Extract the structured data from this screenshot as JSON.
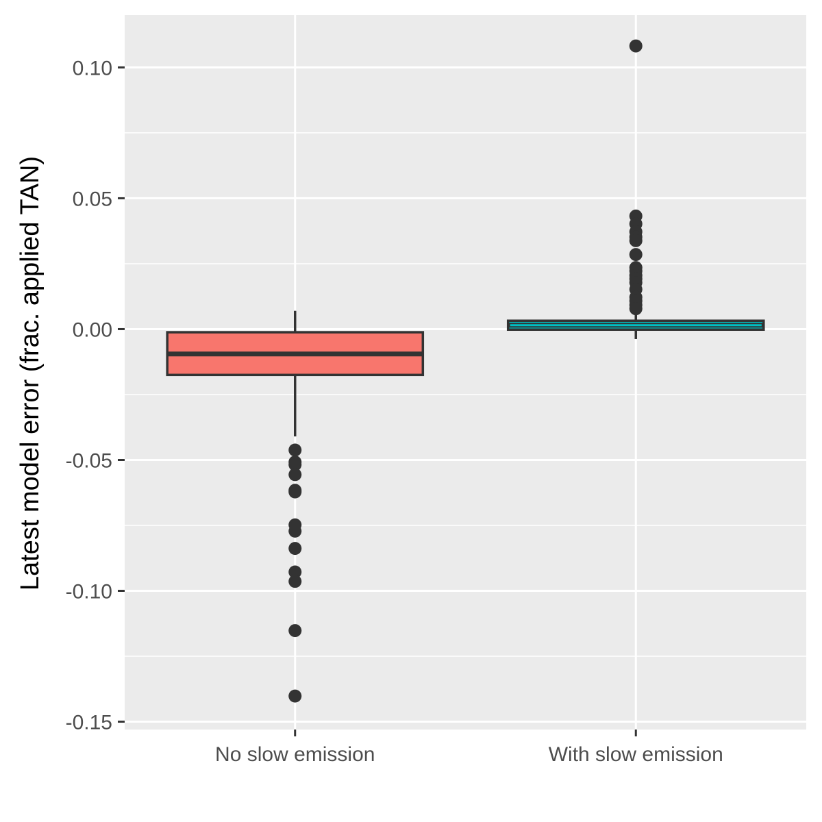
{
  "chart_data": {
    "type": "boxplot",
    "title": "",
    "xlabel": "",
    "ylabel": "Latest model error (frac. applied TAN)",
    "ylim": [
      -0.153,
      0.12
    ],
    "yticks": [
      0.1,
      0.05,
      0.0,
      -0.05,
      -0.1,
      -0.15
    ],
    "ytick_labels": [
      "0.10",
      "0.05",
      "0.00",
      "-0.05",
      "-0.10",
      "-0.15"
    ],
    "grid": true,
    "legend": "none",
    "categories": [
      "No slow emission",
      "With slow emission"
    ],
    "boxes": [
      {
        "category": "No slow emission",
        "fill": "#F8766D",
        "whisker_low": -0.041,
        "q1": -0.0175,
        "median": -0.0095,
        "q3": -0.0012,
        "whisker_high": 0.007,
        "outliers": [
          -0.0462,
          -0.0508,
          -0.0518,
          -0.0556,
          -0.0616,
          -0.0622,
          -0.0748,
          -0.0772,
          -0.0838,
          -0.0928,
          -0.0964,
          -0.1152,
          -0.1402
        ]
      },
      {
        "category": "With slow emission",
        "fill": "#00BFC4",
        "whisker_low": -0.0038,
        "q1": -0.0002,
        "median": 0.0015,
        "q3": 0.0032,
        "whisker_high": 0.006,
        "outliers": [
          0.1082,
          0.0432,
          0.0402,
          0.0372,
          0.0352,
          0.0338,
          0.0285,
          0.0235,
          0.0222,
          0.0205,
          0.0192,
          0.0178,
          0.0152,
          0.0122,
          0.0108,
          0.0092,
          0.0078
        ]
      }
    ],
    "colors": {
      "panel_bg": "#EBEBEB",
      "grid_major": "#FFFFFF",
      "box_outline": "#333333",
      "tick_text": "#4D4D4D"
    }
  }
}
